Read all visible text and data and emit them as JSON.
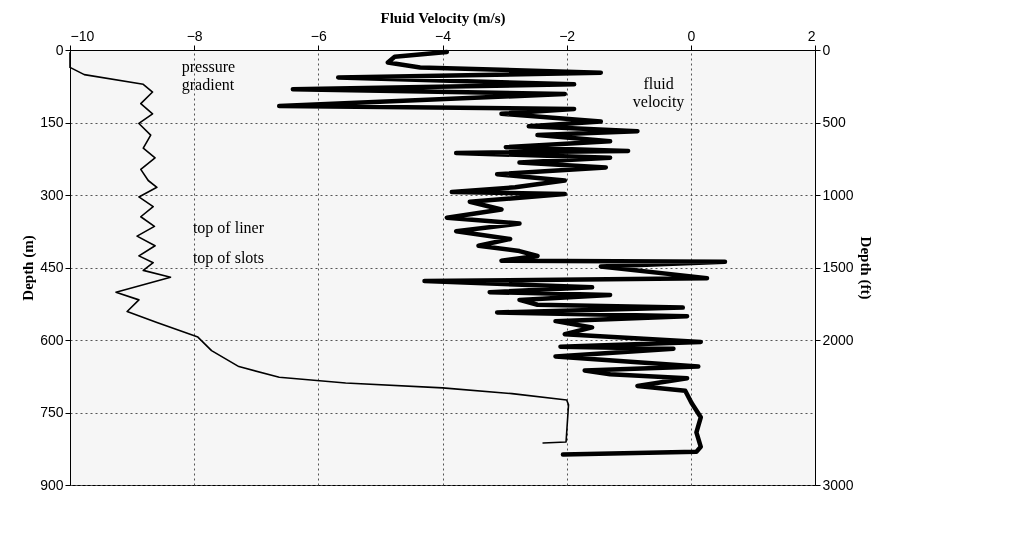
{
  "chart_data": {
    "type": "line",
    "xlabel": "Fluid Velocity (m/s)",
    "ylabel": "Depth (m)",
    "y2label": "Depth (ft)",
    "xlim": [
      -10,
      2
    ],
    "xticks": [
      -10,
      -8,
      -6,
      -4,
      -2,
      0,
      2
    ],
    "ylim": [
      900,
      0
    ],
    "yticks": [
      0,
      150,
      300,
      450,
      600,
      750,
      900
    ],
    "y2lim": [
      3000,
      0
    ],
    "y2ticks": [
      0,
      500,
      1000,
      1500,
      2000,
      3000
    ],
    "grid": true,
    "line_style": "solid",
    "annotations": [
      "top of liner",
      "top of slots"
    ],
    "series": [
      {
        "name": "pressure gradient",
        "color": "#000000",
        "x": [
          -10,
          -10,
          -9.77,
          -8.82,
          -8.67,
          -8.86,
          -8.67,
          -8.89,
          -8.7,
          -8.82,
          -8.63,
          -8.86,
          -8.74,
          -8.6,
          -8.89,
          -8.66,
          -8.86,
          -8.64,
          -8.92,
          -8.63,
          -8.89,
          -8.66,
          -8.82,
          -8.38,
          -9.26,
          -8.89,
          -9.08,
          -8.6,
          -7.94,
          -7.72,
          -7.28,
          -6.63,
          -5.56,
          -4.0,
          -2.88,
          -2.0,
          -1.97,
          -2.01,
          -2.38
        ],
        "values": [
          6,
          36,
          51,
          71,
          87,
          111,
          132,
          152,
          176,
          203,
          223,
          247,
          270,
          284,
          304,
          324,
          345,
          365,
          385,
          405,
          426,
          440,
          456,
          470,
          501,
          517,
          541,
          564,
          594,
          622,
          655,
          677,
          689,
          699,
          711,
          724,
          734,
          811,
          813
        ]
      },
      {
        "name": "fluid velocity",
        "color": "#000000",
        "x": [
          -3.93,
          -4.77,
          -4.88,
          -4.36,
          -1.45,
          -5.68,
          -1.88,
          -6.41,
          -2.03,
          -6.63,
          -1.88,
          -3.05,
          -1.45,
          -2.61,
          -0.86,
          -2.47,
          -1.3,
          -2.98,
          -1.01,
          -3.78,
          -1.3,
          -2.76,
          -1.37,
          -3.12,
          -2.03,
          -2.83,
          -3.85,
          -2.03,
          -3.56,
          -3.05,
          -3.93,
          -2.76,
          -3.78,
          -2.91,
          -3.42,
          -2.76,
          -2.47,
          -3.05,
          0.55,
          -1.45,
          0.26,
          -4.29,
          -1.59,
          -3.24,
          -1.3,
          -2.76,
          -2.47,
          -0.13,
          -3.12,
          -0.06,
          -2.18,
          -1.59,
          -2.03,
          0.16,
          -2.1,
          -0.28,
          -2.18,
          0.12,
          -1.71,
          -1.3,
          -0.06,
          -0.86,
          -0.09,
          0.01,
          0.16,
          0.09,
          0.16,
          0.09,
          -2.06
        ],
        "values": [
          4,
          14,
          26,
          36,
          47,
          57,
          71,
          81,
          91,
          116,
          122,
          132,
          148,
          158,
          168,
          176,
          189,
          201,
          209,
          213,
          223,
          233,
          243,
          257,
          270,
          284,
          294,
          298,
          314,
          330,
          347,
          359,
          375,
          391,
          405,
          416,
          426,
          436,
          438,
          448,
          472,
          478,
          491,
          501,
          507,
          517,
          527,
          533,
          543,
          551,
          561,
          574,
          588,
          604,
          614,
          618,
          634,
          655,
          663,
          671,
          679,
          695,
          705,
          730,
          760,
          791,
          821,
          831,
          837
        ]
      }
    ]
  }
}
